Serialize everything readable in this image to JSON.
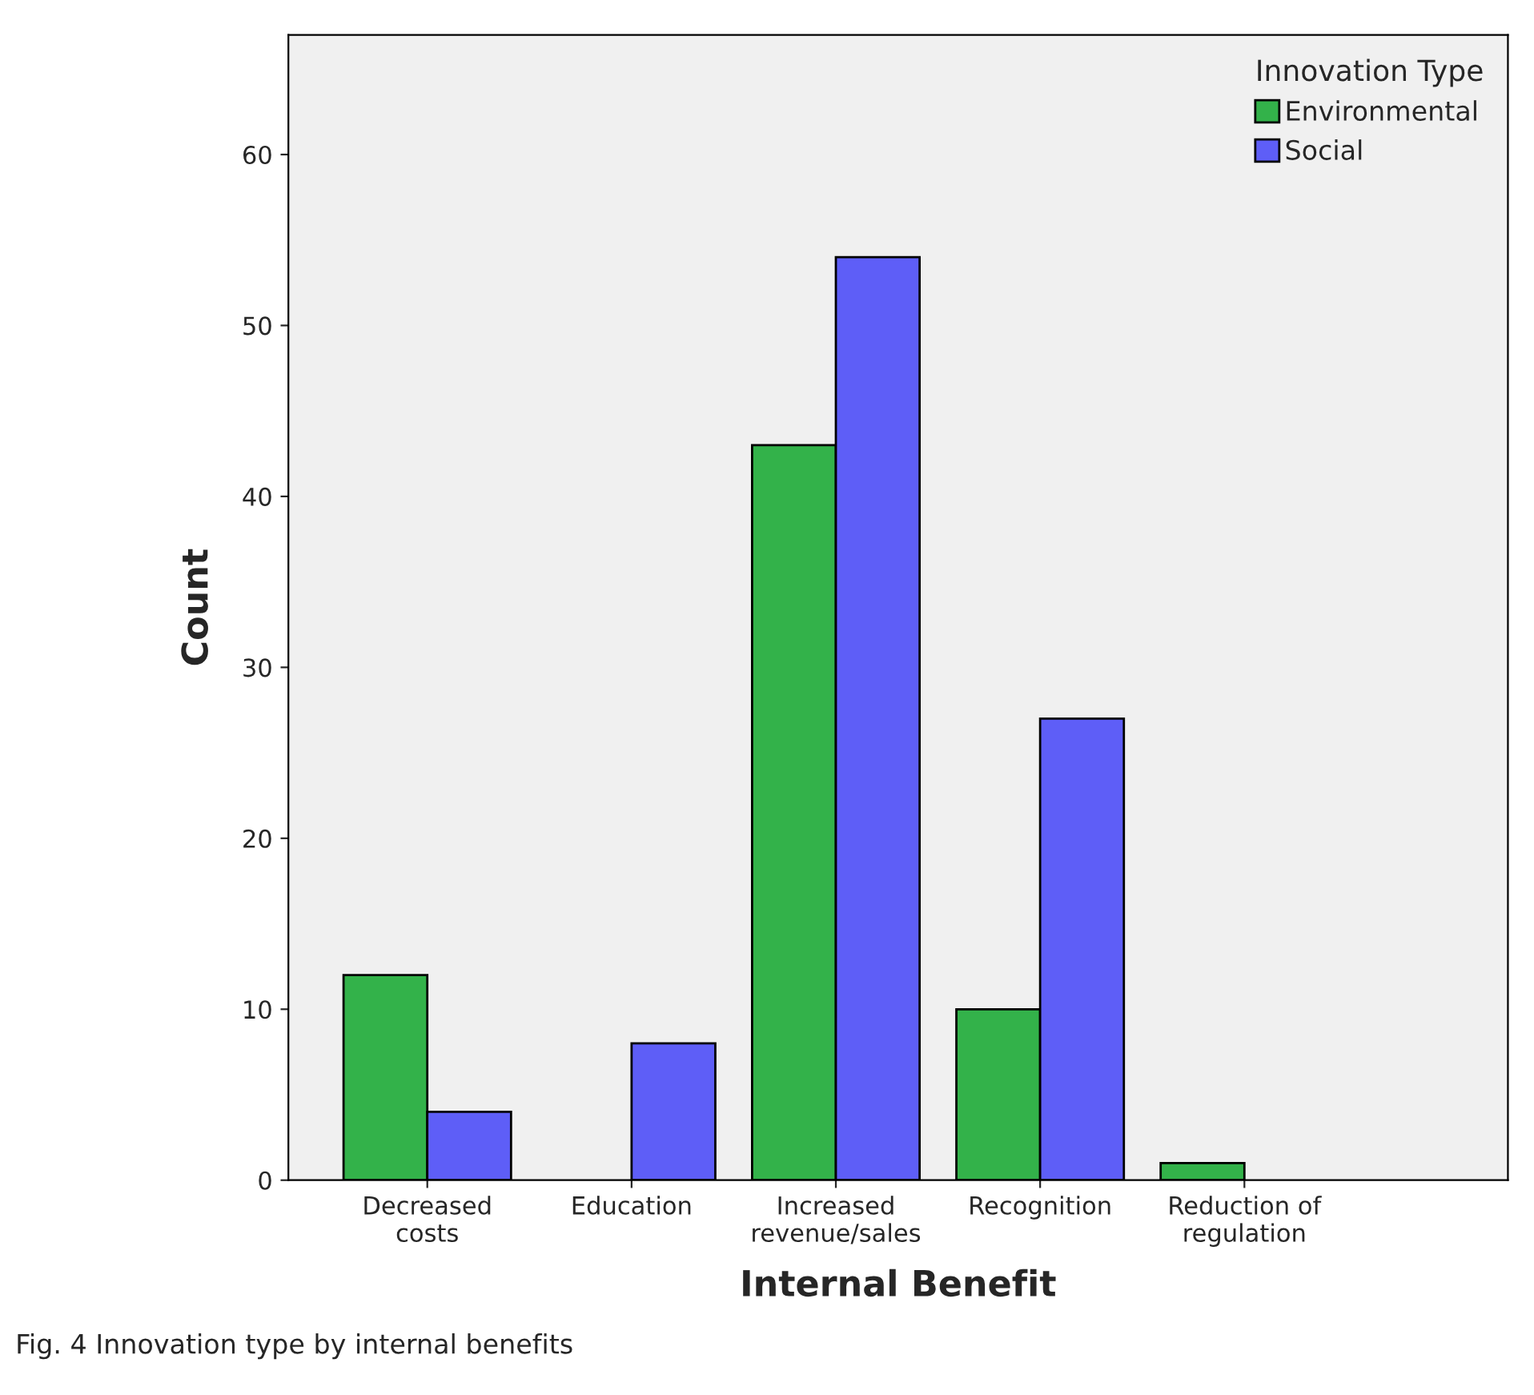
{
  "chart_data": {
    "type": "bar",
    "xlabel": "Internal Benefit",
    "ylabel": "Count",
    "legend_title": "Innovation Type",
    "categories": [
      "Decreased\ncosts",
      "Education",
      "Increased\nrevenue/sales",
      "Recognition",
      "Reduction of\nregulation"
    ],
    "series": [
      {
        "name": "Environmental",
        "color": "#33b24a",
        "values": [
          12,
          null,
          43,
          10,
          1
        ]
      },
      {
        "name": "Social",
        "color": "#5e5ef7",
        "values": [
          4,
          8,
          54,
          27,
          null
        ]
      }
    ],
    "ylim": [
      0,
      67
    ],
    "yticks": [
      0,
      10,
      20,
      30,
      40,
      50,
      60
    ],
    "grid": false,
    "legend": "top right",
    "annotations": [
      "Fig. 4 Innovation type by internal benefits"
    ]
  }
}
